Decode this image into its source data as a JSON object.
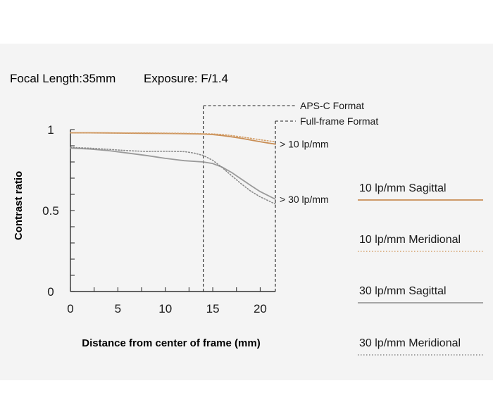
{
  "header": {
    "focal_length": "Focal Length:35mm",
    "exposure": "Exposure: F/1.4"
  },
  "colors": {
    "sagittal_10": "#c98e55",
    "meridional_10": "#d4a06a",
    "sagittal_30": "#9a9a9a",
    "meridional_30": "#8a8a8a",
    "background": "#f4f4f4",
    "axis": "#333333"
  },
  "chart_data": {
    "type": "line",
    "xlabel": "Distance from center of frame (mm)",
    "ylabel": "Contrast ratio",
    "xlim": [
      0,
      21.6
    ],
    "ylim": [
      0,
      1
    ],
    "x_ticks": [
      "0",
      "5",
      "10",
      "15",
      "20"
    ],
    "x_tick_values": [
      0,
      5,
      10,
      15,
      20
    ],
    "y_ticks": [
      "0",
      "0.5",
      "1"
    ],
    "y_tick_values": [
      0,
      0.5,
      1
    ],
    "grid": false,
    "series": [
      {
        "name": "10 lp/mm Sagittal",
        "style": "solid",
        "color": "#c98e55",
        "x": [
          0,
          2,
          4,
          6,
          8,
          10,
          12,
          14,
          15,
          16,
          17,
          18,
          19,
          20,
          21.6
        ],
        "y": [
          0.98,
          0.98,
          0.979,
          0.978,
          0.977,
          0.976,
          0.975,
          0.972,
          0.969,
          0.963,
          0.955,
          0.946,
          0.935,
          0.925,
          0.91
        ]
      },
      {
        "name": "10 lp/mm Meridional",
        "style": "dotted",
        "color": "#d4a06a",
        "x": [
          0,
          2,
          4,
          6,
          8,
          10,
          12,
          14,
          15,
          16,
          17,
          18,
          19,
          20,
          21.6
        ],
        "y": [
          0.98,
          0.98,
          0.98,
          0.979,
          0.979,
          0.978,
          0.977,
          0.975,
          0.973,
          0.969,
          0.963,
          0.955,
          0.946,
          0.937,
          0.925
        ]
      },
      {
        "name": "30 lp/mm Sagittal",
        "style": "solid",
        "color": "#9a9a9a",
        "x": [
          0,
          2,
          4,
          6,
          8,
          10,
          12,
          14,
          15,
          16,
          17,
          18,
          19,
          20,
          21.6
        ],
        "y": [
          0.885,
          0.88,
          0.87,
          0.855,
          0.84,
          0.822,
          0.808,
          0.8,
          0.79,
          0.768,
          0.735,
          0.695,
          0.655,
          0.617,
          0.57
        ]
      },
      {
        "name": "30 lp/mm Meridional",
        "style": "dotted",
        "color": "#8a8a8a",
        "x": [
          0,
          2,
          4,
          6,
          8,
          10,
          12,
          13,
          14,
          15,
          16,
          17,
          18,
          19,
          20,
          21.6
        ],
        "y": [
          0.89,
          0.885,
          0.878,
          0.87,
          0.865,
          0.866,
          0.864,
          0.855,
          0.84,
          0.81,
          0.765,
          0.715,
          0.665,
          0.62,
          0.585,
          0.54
        ]
      }
    ],
    "markers": [
      {
        "label": "APS-C Format",
        "x": 14.0
      },
      {
        "label": "Full-frame Format",
        "x": 21.6
      }
    ],
    "annotations": [
      {
        "label": "> 10 lp/mm",
        "series": 0
      },
      {
        "label": "> 30 lp/mm",
        "series": 2
      }
    ],
    "legend": {
      "position": "right",
      "entries": [
        {
          "label": "10 lp/mm Sagittal",
          "style": "solid",
          "color": "#c98e55"
        },
        {
          "label": "10 lp/mm Meridional",
          "style": "dotted",
          "color": "#d4a06a"
        },
        {
          "label": "30 lp/mm Sagittal",
          "style": "solid",
          "color": "#9a9a9a"
        },
        {
          "label": "30 lp/mm Meridional",
          "style": "dotted",
          "color": "#8a8a8a"
        }
      ]
    }
  }
}
